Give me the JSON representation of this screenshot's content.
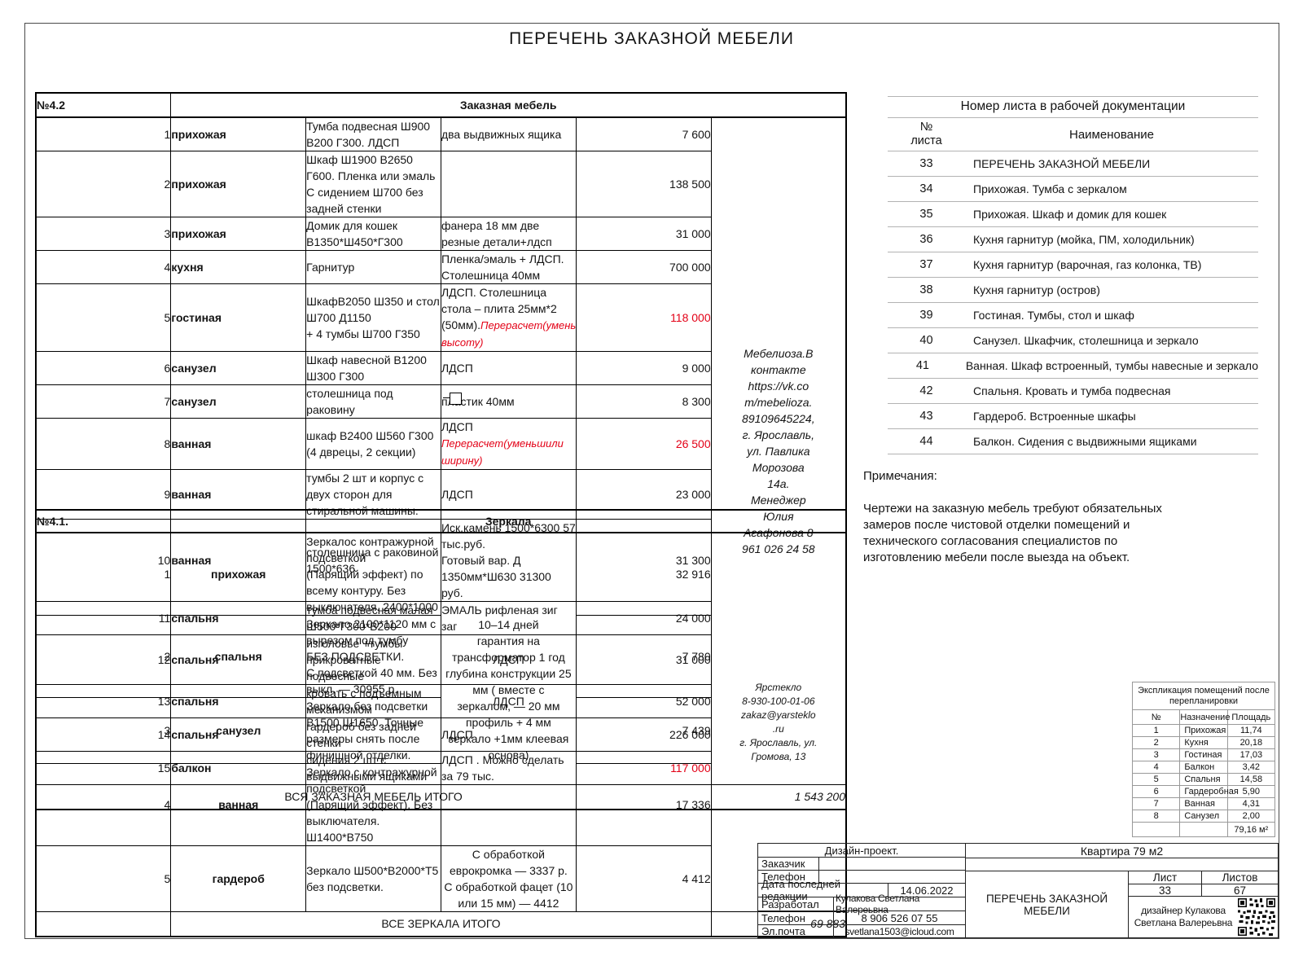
{
  "page": {
    "title": "ПЕРЕЧЕНЬ ЗАКАЗНОЙ МЕБЕЛИ"
  },
  "furniture": {
    "code": "№4.2",
    "title": "Заказная мебель",
    "rows": [
      {
        "num": "1",
        "room": "прихожая",
        "desc": "Тумба подвесная Ш900 В200 Г300. ЛДСП",
        "material": "два выдвижных ящика",
        "price": "7 600"
      },
      {
        "num": "2",
        "room": "прихожая",
        "desc": "Шкаф Ш1900 В2650 Г600. Пленка или эмаль\nС сидением Ш700 без задней стенки",
        "material": "",
        "price": "138 500"
      },
      {
        "num": "3",
        "room": "прихожая",
        "desc": "Домик для кошек В1350*Ш450*Г300",
        "material": "фанера 18 мм две резные детали+лдсп",
        "price": "31 000"
      },
      {
        "num": "4",
        "room": "кухня",
        "desc": "Гарнитур",
        "material": "Пленка/эмаль + ЛДСП. Столешница 40мм",
        "price": "700 000"
      },
      {
        "num": "5",
        "room": "гостиная",
        "desc": "ШкафВ2050 Ш350 и стол Ш700 Д1150\n+ 4 тумбы Ш700 Г350",
        "material": "ЛДСП. Столешница стола – плита 25мм*2\n(50мм).",
        "material_note": "Перерасчет(уменьшили высоту)",
        "price": "118 000",
        "price_red": true
      },
      {
        "num": "6",
        "room": "санузел",
        "desc": "Шкаф навесной В1200 Ш300 Г300",
        "material": "ЛДСП",
        "price": "9 000"
      },
      {
        "num": "7",
        "room": "санузел",
        "desc": "столешница под раковину",
        "material": "пластик 40мм",
        "price": "8 300"
      },
      {
        "num": "8",
        "room": "ванная",
        "desc": "шкаф В2400 Ш560 Г300 (4 дврецы, 2 секции)",
        "material": "ЛДСП ",
        "material_note": "Перерасчет(уменьшили ширину)",
        "price": "26 500",
        "price_red": true
      },
      {
        "num": "9",
        "room": "ванная",
        "desc": "тумбы 2 шт и корпус с двух сторон для\nстиральной машины.",
        "material": "ЛДСП",
        "price": "23 000"
      },
      {
        "num": "10",
        "room": "ванная",
        "desc": "столешница с раковиной 1500*636",
        "material": "Иск.камень 1500*6300 57 тыс.руб.\nГотовый вар. Д 1350мм*Ш630  31300 руб.",
        "price": "31 300"
      },
      {
        "num": "11",
        "room": "спальня",
        "desc": "тумба подвесная малая Ш500*Г300*В200",
        "material": "ЭМАЛЬ рифленая зиг заг",
        "price": "24 000"
      },
      {
        "num": "12",
        "room": "спальня",
        "desc": "изголовье +тумбы прикроватные подвесные",
        "material": "ЛДСП",
        "material_center": true,
        "price": "31 000"
      },
      {
        "num": "13",
        "room": "спальня",
        "desc": "кровать с подъемным механизмом",
        "material": "ЛДСП",
        "material_center": true,
        "price": "52 000"
      },
      {
        "num": "14",
        "room": "спальня",
        "desc": "гардероб без задней стенки",
        "material": "ЛДСП",
        "price": "226 000"
      },
      {
        "num": "15",
        "room": "балкон",
        "desc": "сидения 2 шт с выдвижными ящиками",
        "material": "ЛДСП . Можно сделать за 79 тыс.",
        "price": "117 000",
        "price_red": true
      }
    ],
    "contact": "Мебелиоза.В\nконтакте\nhttps://vk.co\nm/mebelioza.\n89109645224,\nг. Ярославль,\nул. Павлика\nМорозова\n14а.\nМенеджер\nЮлия\nАгафонова 8\n961 026 24 58",
    "total_label": "ВСЯ ЗАКАЗНАЯ МЕБЕЛЬ ИТОГО",
    "total": "1 543 200"
  },
  "mirrors": {
    "code": "№4.1.",
    "title": "Зеркала",
    "rows": [
      {
        "num": "1",
        "room": "прихожая",
        "desc": "Зеркалос контражурной подсветкой\n(Парящий эффект) по всему контуру. Без\nвыключателя. 2400*1000",
        "price": "32 916"
      },
      {
        "num": "2",
        "room": "спальня",
        "desc": "Зеркало  2100*1120 мм с вырезом под тумбу\nБЕЗ ПОДСВЕТКИ.\nС подсветкой 40 мм. Без выкл. — 30955 р.",
        "price": "7 780"
      },
      {
        "num": "3",
        "room": "санузел",
        "desc": "Зеркало без подсветки В1500 Ш1650. Точные\nразмеры снять после финишной отделки.",
        "price": "7 439"
      },
      {
        "num": "4",
        "room": "ванная",
        "desc": "Зеркало с контражурной подсветкой\n(Парящий эффект). Без выключателя.\nШ1400*В750",
        "price": "17 336"
      },
      {
        "num": "5",
        "room": "гардероб",
        "desc": "Зеркало Ш500*В2000*Т5 без подсветки.",
        "info": "С обработкой еврокромка — 3337 р.\nС обработкой фацет (10 или 15 мм) — 4412",
        "price": "4 412"
      }
    ],
    "info_merged": "10–14 дней\nгарантия на трансформатор 1 год\nглубина конструкции 25 мм ( вместе с\nзеркалом,  — 20 мм профиль + 4 мм\nзеркало +1мм клеевая основа)",
    "contact": "Ярстекло\n8-930-100-01-06\nzakaz@yarsteklo\n.ru\nг. Ярославль, ул.\nГромова, 13",
    "total_label": "ВСЕ ЗЕРКАЛА ИТОГО",
    "total": "69 883"
  },
  "sheet_list": {
    "title": "Номер листа в рабочей документации",
    "col_num": "№\nлиста",
    "col_name": "Наименование",
    "rows": [
      {
        "num": "33",
        "name": "ПЕРЕЧЕНЬ ЗАКАЗНОЙ МЕБЕЛИ"
      },
      {
        "num": "34",
        "name": "Прихожая. Тумба с зеркалом"
      },
      {
        "num": "35",
        "name": "Прихожая. Шкаф и домик для кошек"
      },
      {
        "num": "36",
        "name": "Кухня гарнитур (мойка, ПМ, холодильник)"
      },
      {
        "num": "37",
        "name": "Кухня гарнитур (варочная, газ колонка, ТВ)"
      },
      {
        "num": "38",
        "name": "Кухня гарнитур (остров)"
      },
      {
        "num": "39",
        "name": "Гостиная. Тумбы, стол и шкаф"
      },
      {
        "num": "40",
        "name": "Санузел. Шкафчик, столешница и зеркало"
      },
      {
        "num": "41",
        "name": "Ванная. Шкаф встроенный, тумбы навесные и зеркало"
      },
      {
        "num": "42",
        "name": "Спальня. Кровать и тумба подвесная"
      },
      {
        "num": "43",
        "name": "Гардероб. Встроенные шкафы"
      },
      {
        "num": "44",
        "name": "Балкон. Сидения с выдвижными ящиками"
      }
    ]
  },
  "notes": {
    "title": "Примечания:",
    "text": "Чертежи на заказную мебель требуют обязательных\nзамеров после чистовой отделки помещений и\nтехнического согласования специалистов по\nизготовлению мебели после выезда на объект."
  },
  "explication": {
    "title": "Экспликация помещений после\nперепланировки",
    "headers": [
      "№",
      "Назначение",
      "Площадь"
    ],
    "rows": [
      {
        "num": "1",
        "name": "Прихожая",
        "area": "11,74"
      },
      {
        "num": "2",
        "name": "Кухня",
        "area": "20,18"
      },
      {
        "num": "3",
        "name": "Гостиная",
        "area": "17,03"
      },
      {
        "num": "4",
        "name": "Балкон",
        "area": "3,42"
      },
      {
        "num": "5",
        "name": "Спальня",
        "area": "14,58"
      },
      {
        "num": "6",
        "name": "Гардеробная",
        "area": "5,90"
      },
      {
        "num": "7",
        "name": "Ванная",
        "area": "4,31"
      },
      {
        "num": "8",
        "name": "Санузел",
        "area": "2,00"
      }
    ],
    "total": "79,16 м²"
  },
  "title_block": {
    "project_type": "Дизайн-проект.",
    "object_name": "Квартира 79 м2",
    "customer_label": "Заказчик",
    "customer_value": "",
    "phone1_label": "Телефон",
    "phone1_value": "",
    "date_label": "Дата последней редакции",
    "date_value": "14.06.2022",
    "developer_label": "Разработал",
    "developer_value": "Кулакова Светлана Валереьвна",
    "phone2_label": "Телефон",
    "phone2_value": "8 906 526 07 55",
    "email_label": "Эл.почта",
    "email_value": "svetlana1503@icloud.com",
    "doc_name": "ПЕРЕЧЕНЬ ЗАКАЗНОЙ МЕБЕЛИ",
    "sheet_label": "Лист",
    "sheets_label": "Листов",
    "sheet_number": "33",
    "sheets_total": "67",
    "designer": "дизайнер Кулакова\nСветлана Валереьвна"
  },
  "colors": {
    "accent_red": "#e30016"
  }
}
